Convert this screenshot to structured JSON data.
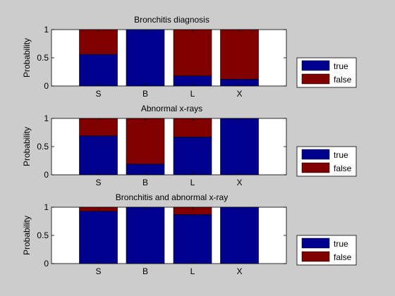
{
  "colors": {
    "background": "#cccccc",
    "axes_bg": "#ffffff",
    "true": "#00008f",
    "false": "#800000"
  },
  "chart_data": [
    {
      "type": "bar",
      "stacked": true,
      "title": "Bronchitis diagnosis",
      "ylabel": "Probability",
      "ylim": [
        0,
        1
      ],
      "yticks": [
        "0",
        "0.5",
        "1"
      ],
      "categories": [
        "S",
        "B",
        "L",
        "X"
      ],
      "series": [
        {
          "name": "true",
          "values": [
            0.56,
            1.0,
            0.18,
            0.12
          ]
        },
        {
          "name": "false",
          "values": [
            0.44,
            0.0,
            0.82,
            0.88
          ]
        }
      ],
      "legend": [
        "true",
        "false"
      ],
      "legend_position": "right"
    },
    {
      "type": "bar",
      "stacked": true,
      "title": "Abnormal x-rays",
      "ylabel": "Probability",
      "ylim": [
        0,
        1
      ],
      "yticks": [
        "0",
        "0.5",
        "1"
      ],
      "categories": [
        "S",
        "B",
        "L",
        "X"
      ],
      "series": [
        {
          "name": "true",
          "values": [
            0.69,
            0.19,
            0.67,
            1.0
          ]
        },
        {
          "name": "false",
          "values": [
            0.31,
            0.81,
            0.33,
            0.0
          ]
        }
      ],
      "legend": [
        "true",
        "false"
      ],
      "legend_position": "right"
    },
    {
      "type": "bar",
      "stacked": true,
      "title": "Bronchitis and abnormal x-ray",
      "ylabel": "Probability",
      "ylim": [
        0,
        1
      ],
      "yticks": [
        "0",
        "0.5",
        "1"
      ],
      "categories": [
        "S",
        "B",
        "L",
        "X"
      ],
      "series": [
        {
          "name": "true",
          "values": [
            0.93,
            1.0,
            0.87,
            1.0
          ]
        },
        {
          "name": "false",
          "values": [
            0.07,
            0.0,
            0.13,
            0.0
          ]
        }
      ],
      "legend": [
        "true",
        "false"
      ],
      "legend_position": "right"
    }
  ]
}
